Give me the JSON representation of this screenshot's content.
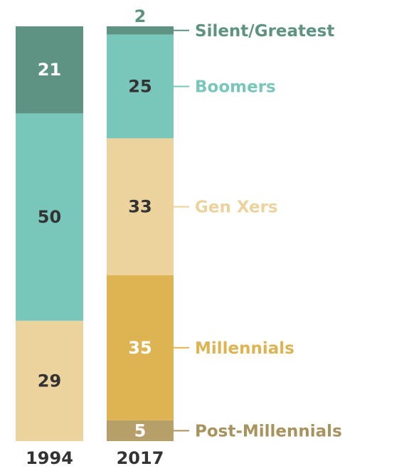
{
  "chart_data": {
    "type": "bar",
    "stacked": true,
    "categories": [
      "1994",
      "2017"
    ],
    "series": [
      {
        "name": "Silent/Greatest",
        "values": [
          21,
          2
        ],
        "color": "#5e9282",
        "label_color": "#5e9282",
        "value_text_color": "#ffffff"
      },
      {
        "name": "Boomers",
        "values": [
          50,
          25
        ],
        "color": "#79c7bb",
        "label_color": "#79c7bb",
        "value_text_color": "#333333"
      },
      {
        "name": "Gen Xers",
        "values": [
          29,
          33
        ],
        "color": "#ecd39e",
        "label_color": "#ecd39e",
        "value_text_color": "#333333"
      },
      {
        "name": "Millennials",
        "values": [
          0,
          35
        ],
        "color": "#deb452",
        "label_color": "#deb452",
        "value_text_color": "#ffffff"
      },
      {
        "name": "Post-Millennials",
        "values": [
          0,
          5
        ],
        "color": "#b79f6a",
        "label_color": "#a8935f",
        "value_text_color": "#ffffff"
      }
    ],
    "value_labels": [
      [
        "21",
        "50",
        "29",
        "",
        ""
      ],
      [
        "2",
        "25",
        "33",
        "35",
        "5"
      ]
    ],
    "ylim": [
      0,
      100
    ],
    "legend_placement": "right, labels aligned with 2017 segments",
    "grid": false
  }
}
